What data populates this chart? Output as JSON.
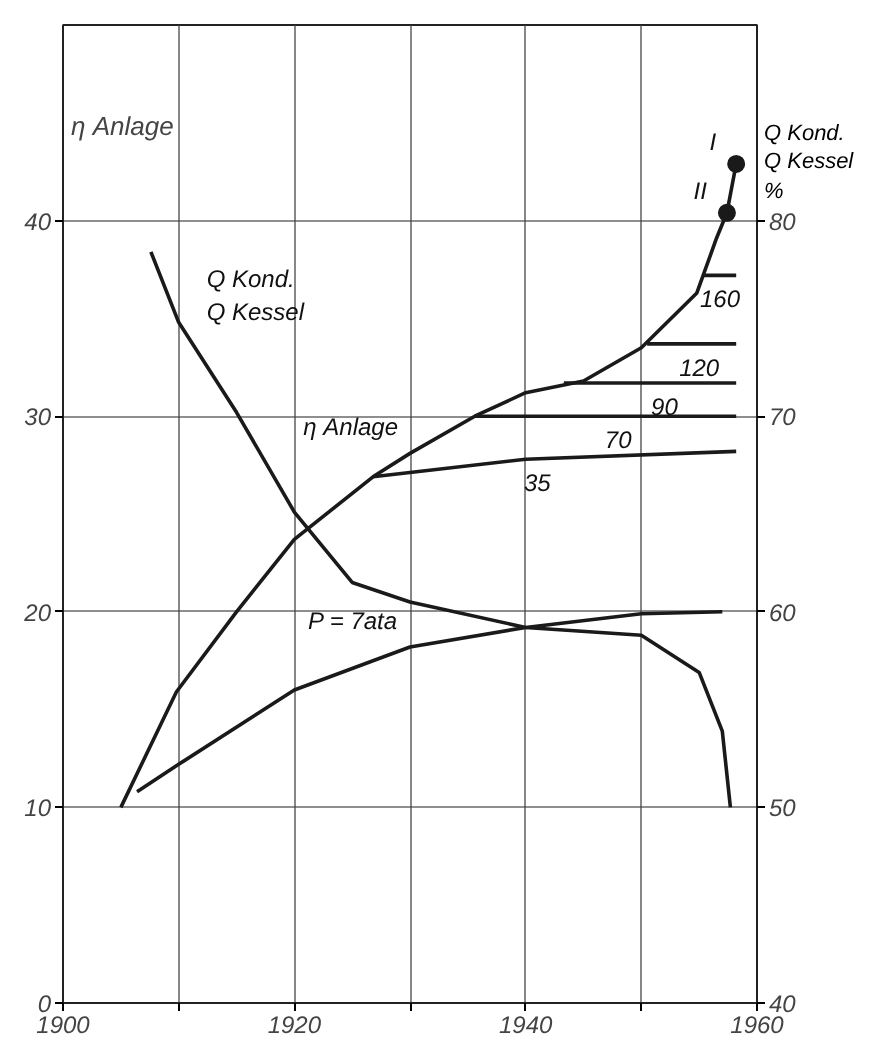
{
  "chart_data": {
    "type": "line",
    "ylabel": "η Anlage",
    "y2label": "Q Kond.\nQ Kessel\n%",
    "xlim": [
      1900,
      1960
    ],
    "xticks": [
      1900,
      {
        "value": 1910,
        "label": null
      },
      1920,
      {
        "value": 1930,
        "label": null
      },
      1940,
      {
        "value": 1950,
        "label": null
      },
      1960
    ],
    "ylim": [
      0,
      50
    ],
    "yticks": [
      0,
      10,
      20,
      30,
      40
    ],
    "y2lim": [
      40,
      90
    ],
    "y2ticks": [
      40,
      50,
      60,
      70,
      80
    ],
    "grid": true,
    "line_style": "solid",
    "marker": "none",
    "series": [
      {
        "name": "η Anlage",
        "color": "#1a1a1a",
        "x": [
          1905,
          1909.8,
          1915,
          1920,
          1926.8,
          1930,
          1935.6,
          1940,
          1945,
          1950,
          1954.8,
          1956.5,
          1957.4,
          1958.2
        ],
        "values": [
          10,
          15.9,
          20,
          23.7,
          26.9,
          28.1,
          30,
          31.2,
          31.8,
          33.5,
          36.3,
          39.1,
          40.4,
          42.9
        ]
      },
      {
        "name": "Q Kond.\nQ Kessel",
        "color": "#1a1a1a",
        "axis": "y2",
        "x": [
          1907.6,
          1910,
          1915,
          1920,
          1925,
          1930,
          1940,
          1950,
          1955,
          1957,
          1957.7
        ],
        "values": [
          78.4,
          74.8,
          70.2,
          65.1,
          61.5,
          60.5,
          59.2,
          58.8,
          56.9,
          53.9,
          50
        ]
      },
      {
        "name": "P = 7ata",
        "color": "#1a1a1a",
        "x": [
          1906.4,
          1910,
          1920,
          1930,
          1940,
          1950,
          1957
        ],
        "values": [
          10.8,
          12.2,
          16.0,
          18.2,
          19.2,
          19.9,
          20.0
        ]
      },
      {
        "color": "#1a1a1a",
        "x": [
          1926.8,
          1940,
          1958.2
        ],
        "values": [
          26.9,
          27.8,
          28.2
        ]
      },
      {
        "color": "#1a1a1a",
        "x": [
          1935.6,
          1958.2
        ],
        "values": [
          30,
          30
        ]
      },
      {
        "color": "#1a1a1a",
        "x": [
          1943.3,
          1958.2
        ],
        "values": [
          31.7,
          31.7
        ]
      },
      {
        "color": "#1a1a1a",
        "x": [
          1950.5,
          1958.2
        ],
        "values": [
          33.7,
          33.7
        ]
      },
      {
        "color": "#1a1a1a",
        "x": [
          1955.4,
          1958.2
        ],
        "values": [
          37.2,
          37.2
        ]
      },
      {
        "type": "scatter",
        "marker": "circle",
        "color": "#1a1a1a",
        "x": [
          1957.4,
          1958.2
        ],
        "values": [
          40.4,
          42.9
        ]
      }
    ],
    "annotations": [
      {
        "text": "35",
        "x": 1941,
        "y": 27.8
      },
      {
        "text": "70",
        "x": 1948,
        "y": 30
      },
      {
        "text": "90",
        "x": 1952,
        "y": 31.7
      },
      {
        "text": "120",
        "x": 1955,
        "y": 33.7
      },
      {
        "text": "160",
        "x": 1956.8,
        "y": 37.2
      },
      {
        "text": "II",
        "x": 1957.4,
        "y": 40.4
      },
      {
        "text": "I",
        "x": 1958.2,
        "y": 42.9
      }
    ]
  }
}
